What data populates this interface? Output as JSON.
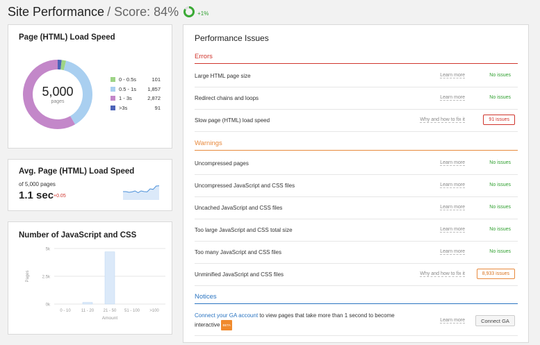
{
  "header": {
    "title": "Site Performance",
    "score_label": "/ Score: 84%",
    "score_delta": "+1%",
    "score_fraction": 0.84,
    "colors": {
      "ring": "#3aaa35",
      "ring_track": "#dddddd"
    }
  },
  "load_speed": {
    "title": "Page (HTML) Load Speed",
    "total": "5,000",
    "total_label": "pages",
    "legend": [
      {
        "label": "0 - 0.5s",
        "value": "101",
        "count": 101,
        "color": "#9ed486"
      },
      {
        "label": "0.5 - 1s",
        "value": "1,857",
        "count": 1857,
        "color": "#a9cff0"
      },
      {
        "label": "1 - 3s",
        "value": "2,872",
        "count": 2872,
        "color": "#c387c9"
      },
      {
        "label": ">3s",
        "value": "91",
        "count": 91,
        "color": "#4d64b8"
      }
    ]
  },
  "avg_speed": {
    "title": "Avg. Page (HTML) Load Speed",
    "subtitle": "of 5,000 pages",
    "value": "1.1 sec",
    "delta": "+0.05",
    "trend": [
      0.5,
      0.5,
      0.45,
      0.48,
      0.55,
      0.42,
      0.55,
      0.5,
      0.48,
      0.7,
      0.66,
      0.9,
      0.92
    ],
    "colors": {
      "line": "#4a8fd8",
      "fill": "#dbe9f9"
    }
  },
  "js_css": {
    "title": "Number of JavaScript and CSS",
    "chart_data": {
      "type": "bar",
      "categories": [
        "0 - 10",
        "11 - 20",
        "21 - 50",
        "51 - 100",
        ">100"
      ],
      "values": [
        0,
        150,
        4700,
        0,
        0
      ],
      "ylabel": "Pages",
      "xlabel": "Amount",
      "yticks": [
        {
          "label": "5k",
          "v": 5000
        },
        {
          "label": "2.5k",
          "v": 2500
        },
        {
          "label": "0k",
          "v": 0
        }
      ],
      "ylim": [
        0,
        5000
      ],
      "grid": true,
      "colors": {
        "bar": "#dbe9f9",
        "bar_border": "#b9d5f1"
      }
    }
  },
  "issues": {
    "title": "Performance Issues",
    "sections": [
      {
        "title": "Errors",
        "color": "#d0342c",
        "rows": [
          {
            "name": "Large HTML page size",
            "link": "Learn more",
            "status": "No issues",
            "kind": "ok"
          },
          {
            "name": "Redirect chains and loops",
            "link": "Learn more",
            "status": "No issues",
            "kind": "ok"
          },
          {
            "name": "Slow page (HTML) load speed",
            "link": "Why and how to fix it",
            "status": "91 issues",
            "kind": "error"
          }
        ]
      },
      {
        "title": "Warnings",
        "color": "#e8893c",
        "rows": [
          {
            "name": "Uncompressed pages",
            "link": "Learn more",
            "status": "No issues",
            "kind": "ok"
          },
          {
            "name": "Uncompressed JavaScript and CSS files",
            "link": "Learn more",
            "status": "No issues",
            "kind": "ok"
          },
          {
            "name": "Uncached JavaScript and CSS files",
            "link": "Learn more",
            "status": "No issues",
            "kind": "ok"
          },
          {
            "name": "Too large JavaScript and CSS total size",
            "link": "Learn more",
            "status": "No issues",
            "kind": "ok"
          },
          {
            "name": "Too many JavaScript and CSS files",
            "link": "Learn more",
            "status": "No issues",
            "kind": "ok"
          },
          {
            "name": "Unminified JavaScript and CSS files",
            "link": "Why and how to fix it",
            "status": "8,933 issues",
            "kind": "warning"
          }
        ]
      }
    ],
    "notices": {
      "title": "Notices",
      "color": "#2a74c1",
      "link_text": "Connect your GA account",
      "text": " to view pages that take more than 1 second to become interactive",
      "beta": "BETA",
      "learn_more": "Learn more",
      "button": "Connect GA"
    }
  }
}
